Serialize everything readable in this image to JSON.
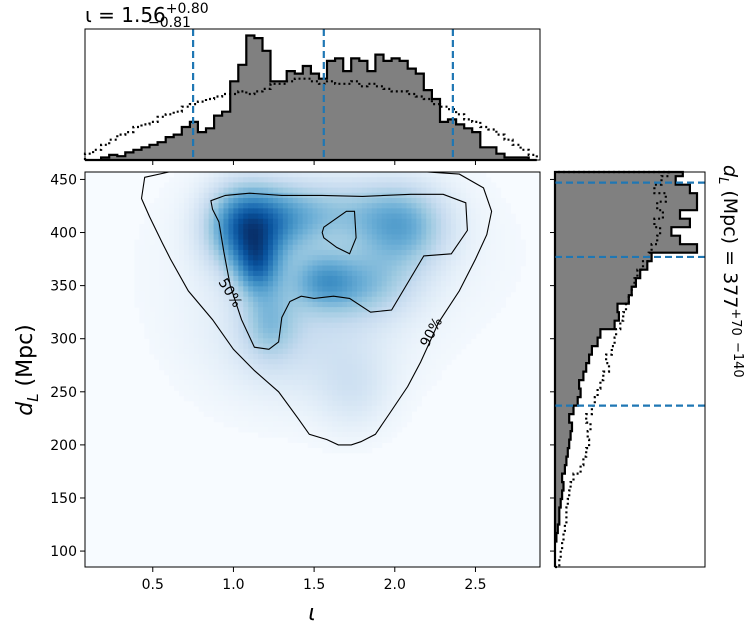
{
  "chart_data": [
    {
      "type": "area",
      "panel": "top-marginal",
      "title": "ι = 1.56",
      "title_sup": "+0.80",
      "title_sub": "−0.81",
      "xlim": [
        0.08,
        2.9
      ],
      "quantile_lines": [
        0.75,
        1.56,
        2.36
      ],
      "series": [
        {
          "style": "filled-step",
          "x": [
            0.08,
            0.13,
            0.18,
            0.23,
            0.28,
            0.33,
            0.38,
            0.43,
            0.48,
            0.53,
            0.58,
            0.63,
            0.68,
            0.73,
            0.78,
            0.83,
            0.88,
            0.93,
            0.98,
            1.03,
            1.08,
            1.13,
            1.18,
            1.23,
            1.28,
            1.33,
            1.38,
            1.43,
            1.48,
            1.53,
            1.58,
            1.63,
            1.68,
            1.73,
            1.78,
            1.83,
            1.88,
            1.93,
            1.98,
            2.03,
            2.08,
            2.13,
            2.18,
            2.23,
            2.28,
            2.33,
            2.38,
            2.43,
            2.48,
            2.53,
            2.58,
            2.63,
            2.68,
            2.73,
            2.78,
            2.83
          ],
          "y": [
            0.0,
            0.0,
            0.02,
            0.04,
            0.03,
            0.06,
            0.08,
            0.1,
            0.12,
            0.14,
            0.18,
            0.2,
            0.26,
            0.3,
            0.22,
            0.25,
            0.35,
            0.38,
            0.62,
            0.75,
            0.98,
            0.96,
            0.86,
            0.62,
            0.62,
            0.7,
            0.68,
            0.74,
            0.68,
            0.64,
            0.78,
            0.8,
            0.7,
            0.8,
            0.78,
            0.7,
            0.83,
            0.78,
            0.8,
            0.78,
            0.72,
            0.68,
            0.55,
            0.48,
            0.3,
            0.32,
            0.28,
            0.25,
            0.22,
            0.1,
            0.1,
            0.05,
            0.02,
            0.02,
            0.02,
            0.0
          ]
        },
        {
          "style": "dotted-step",
          "x": [
            0.08,
            0.13,
            0.18,
            0.23,
            0.28,
            0.33,
            0.38,
            0.43,
            0.48,
            0.53,
            0.58,
            0.63,
            0.68,
            0.73,
            0.78,
            0.83,
            0.88,
            0.93,
            0.98,
            1.03,
            1.08,
            1.13,
            1.18,
            1.23,
            1.28,
            1.33,
            1.38,
            1.43,
            1.48,
            1.53,
            1.58,
            1.63,
            1.68,
            1.73,
            1.78,
            1.83,
            1.88,
            1.93,
            1.98,
            2.03,
            2.08,
            2.13,
            2.18,
            2.23,
            2.28,
            2.33,
            2.38,
            2.43,
            2.48,
            2.53,
            2.58,
            2.63,
            2.68,
            2.73,
            2.78,
            2.83
          ],
          "y": [
            0.05,
            0.08,
            0.12,
            0.16,
            0.2,
            0.22,
            0.26,
            0.28,
            0.3,
            0.34,
            0.36,
            0.38,
            0.42,
            0.44,
            0.46,
            0.48,
            0.5,
            0.52,
            0.52,
            0.54,
            0.52,
            0.54,
            0.56,
            0.6,
            0.6,
            0.62,
            0.64,
            0.64,
            0.62,
            0.6,
            0.62,
            0.6,
            0.6,
            0.62,
            0.58,
            0.6,
            0.58,
            0.56,
            0.54,
            0.54,
            0.52,
            0.5,
            0.48,
            0.44,
            0.42,
            0.4,
            0.36,
            0.32,
            0.3,
            0.26,
            0.24,
            0.2,
            0.16,
            0.12,
            0.08,
            0.04
          ]
        }
      ]
    },
    {
      "type": "heatmap",
      "panel": "joint",
      "xlabel": "ι",
      "ylabel": "d",
      "ylabel_sub": "L",
      "ylabel_unit": " (Mpc)",
      "xlim": [
        0.08,
        2.9
      ],
      "ylim": [
        85,
        457
      ],
      "xticks": [
        "0.5",
        "1.0",
        "1.5",
        "2.0",
        "2.5"
      ],
      "xtick_values": [
        0.5,
        1.0,
        1.5,
        2.0,
        2.5
      ],
      "yticks": [
        "100",
        "150",
        "200",
        "250",
        "300",
        "350",
        "400",
        "450"
      ],
      "ytick_values": [
        100,
        150,
        200,
        250,
        300,
        350,
        400,
        450
      ],
      "colormap": "Blues",
      "density_blobs": [
        {
          "x": 1.05,
          "y": 405,
          "sx": 0.16,
          "sy": 28,
          "w": 1.0
        },
        {
          "x": 1.15,
          "y": 368,
          "sx": 0.1,
          "sy": 20,
          "w": 0.8
        },
        {
          "x": 1.25,
          "y": 410,
          "sx": 0.2,
          "sy": 24,
          "w": 0.6
        },
        {
          "x": 2.05,
          "y": 405,
          "sx": 0.2,
          "sy": 28,
          "w": 0.75
        },
        {
          "x": 1.55,
          "y": 355,
          "sx": 0.14,
          "sy": 18,
          "w": 0.55
        },
        {
          "x": 1.8,
          "y": 350,
          "sx": 0.22,
          "sy": 22,
          "w": 0.5
        },
        {
          "x": 1.6,
          "y": 420,
          "sx": 0.3,
          "sy": 22,
          "w": 0.45
        },
        {
          "x": 1.22,
          "y": 315,
          "sx": 0.12,
          "sy": 25,
          "w": 0.45
        },
        {
          "x": 1.4,
          "y": 300,
          "sx": 0.4,
          "sy": 45,
          "w": 0.3
        },
        {
          "x": 1.75,
          "y": 250,
          "sx": 0.16,
          "sy": 28,
          "w": 0.22
        },
        {
          "x": 1.6,
          "y": 380,
          "sx": 0.7,
          "sy": 60,
          "w": 0.15
        }
      ],
      "contour_labels": [
        "50%",
        "90%"
      ],
      "contours": [
        {
          "level": "90%",
          "x": [
            0.45,
            0.6,
            0.8,
            1.0,
            1.2,
            1.4,
            1.6,
            1.8,
            2.0,
            2.2,
            2.4,
            2.55,
            2.6,
            2.57,
            2.5,
            2.4,
            2.27,
            2.22,
            2.16,
            2.08,
            1.97,
            1.88,
            1.79,
            1.73,
            1.65,
            1.58,
            1.47,
            1.4,
            1.28,
            1.13,
            1.0,
            0.87,
            0.72,
            0.61,
            0.56,
            0.48,
            0.43,
            0.45
          ],
          "y": [
            452,
            457,
            457,
            457,
            457,
            457,
            457,
            457,
            457,
            457,
            455,
            442,
            420,
            398,
            375,
            345,
            315,
            298,
            278,
            255,
            230,
            210,
            203,
            200,
            200,
            205,
            210,
            225,
            250,
            270,
            290,
            318,
            345,
            375,
            390,
            415,
            432,
            452
          ]
        },
        {
          "level": "50%",
          "x": [
            0.86,
            0.95,
            1.1,
            1.3,
            1.55,
            1.8,
            2.1,
            2.3,
            2.44,
            2.45,
            2.35,
            2.18,
            2.07,
            1.98,
            1.85,
            1.72,
            1.62,
            1.5,
            1.42,
            1.35,
            1.3,
            1.28,
            1.22,
            1.13,
            1.05,
            0.98,
            0.94,
            0.91,
            0.87,
            0.86
          ],
          "y": [
            430,
            435,
            437,
            435,
            435,
            434,
            436,
            436,
            428,
            402,
            380,
            378,
            350,
            327,
            325,
            338,
            340,
            338,
            340,
            335,
            320,
            297,
            290,
            292,
            318,
            350,
            382,
            410,
            422,
            430
          ]
        },
        {
          "level": "50%",
          "x": [
            1.56,
            1.7,
            1.75,
            1.76,
            1.72,
            1.64,
            1.56,
            1.55,
            1.56
          ],
          "y": [
            405,
            420,
            420,
            395,
            380,
            386,
            395,
            400,
            405
          ]
        }
      ]
    },
    {
      "type": "area",
      "panel": "right-marginal",
      "title": "d",
      "title_sub_label": "L",
      "title_unit": " (Mpc) = 377",
      "title_sup": "+70",
      "title_sub": "−140",
      "ylim": [
        85,
        457
      ],
      "quantile_lines": [
        237,
        377,
        447
      ],
      "series": [
        {
          "style": "filled-step",
          "y": [
            85,
            93,
            101,
            109,
            117,
            125,
            133,
            141,
            149,
            157,
            165,
            173,
            181,
            189,
            197,
            205,
            213,
            221,
            229,
            237,
            245,
            253,
            261,
            269,
            277,
            285,
            293,
            301,
            309,
            317,
            325,
            333,
            341,
            349,
            357,
            365,
            373,
            381,
            389,
            397,
            405,
            413,
            421,
            429,
            437,
            445,
            453
          ],
          "x": [
            0.0,
            0.0,
            0.0,
            0.01,
            0.02,
            0.03,
            0.03,
            0.04,
            0.05,
            0.06,
            0.05,
            0.07,
            0.08,
            0.09,
            0.1,
            0.11,
            0.12,
            0.1,
            0.13,
            0.16,
            0.18,
            0.17,
            0.2,
            0.22,
            0.24,
            0.26,
            0.3,
            0.32,
            0.42,
            0.45,
            0.44,
            0.52,
            0.54,
            0.57,
            0.6,
            0.65,
            0.68,
            1.0,
            0.88,
            0.82,
            0.95,
            0.88,
            1.0,
            1.0,
            0.95,
            0.85,
            0.9
          ]
        },
        {
          "style": "dotted-step",
          "y": [
            85,
            93,
            101,
            109,
            117,
            125,
            133,
            141,
            149,
            157,
            165,
            173,
            181,
            189,
            197,
            205,
            213,
            221,
            229,
            237,
            245,
            253,
            261,
            269,
            277,
            285,
            293,
            301,
            309,
            317,
            325,
            333,
            341,
            349,
            357,
            365,
            373,
            381,
            389,
            397,
            405,
            413,
            421,
            429,
            437,
            445,
            453
          ],
          "x": [
            0.03,
            0.04,
            0.05,
            0.06,
            0.07,
            0.08,
            0.08,
            0.09,
            0.1,
            0.11,
            0.13,
            0.18,
            0.2,
            0.22,
            0.24,
            0.23,
            0.25,
            0.22,
            0.26,
            0.28,
            0.3,
            0.32,
            0.34,
            0.38,
            0.36,
            0.4,
            0.42,
            0.43,
            0.46,
            0.48,
            0.5,
            0.52,
            0.54,
            0.56,
            0.58,
            0.62,
            0.66,
            0.68,
            0.72,
            0.74,
            0.7,
            0.76,
            0.72,
            0.78,
            0.7,
            0.75,
            0.8
          ]
        }
      ]
    }
  ]
}
